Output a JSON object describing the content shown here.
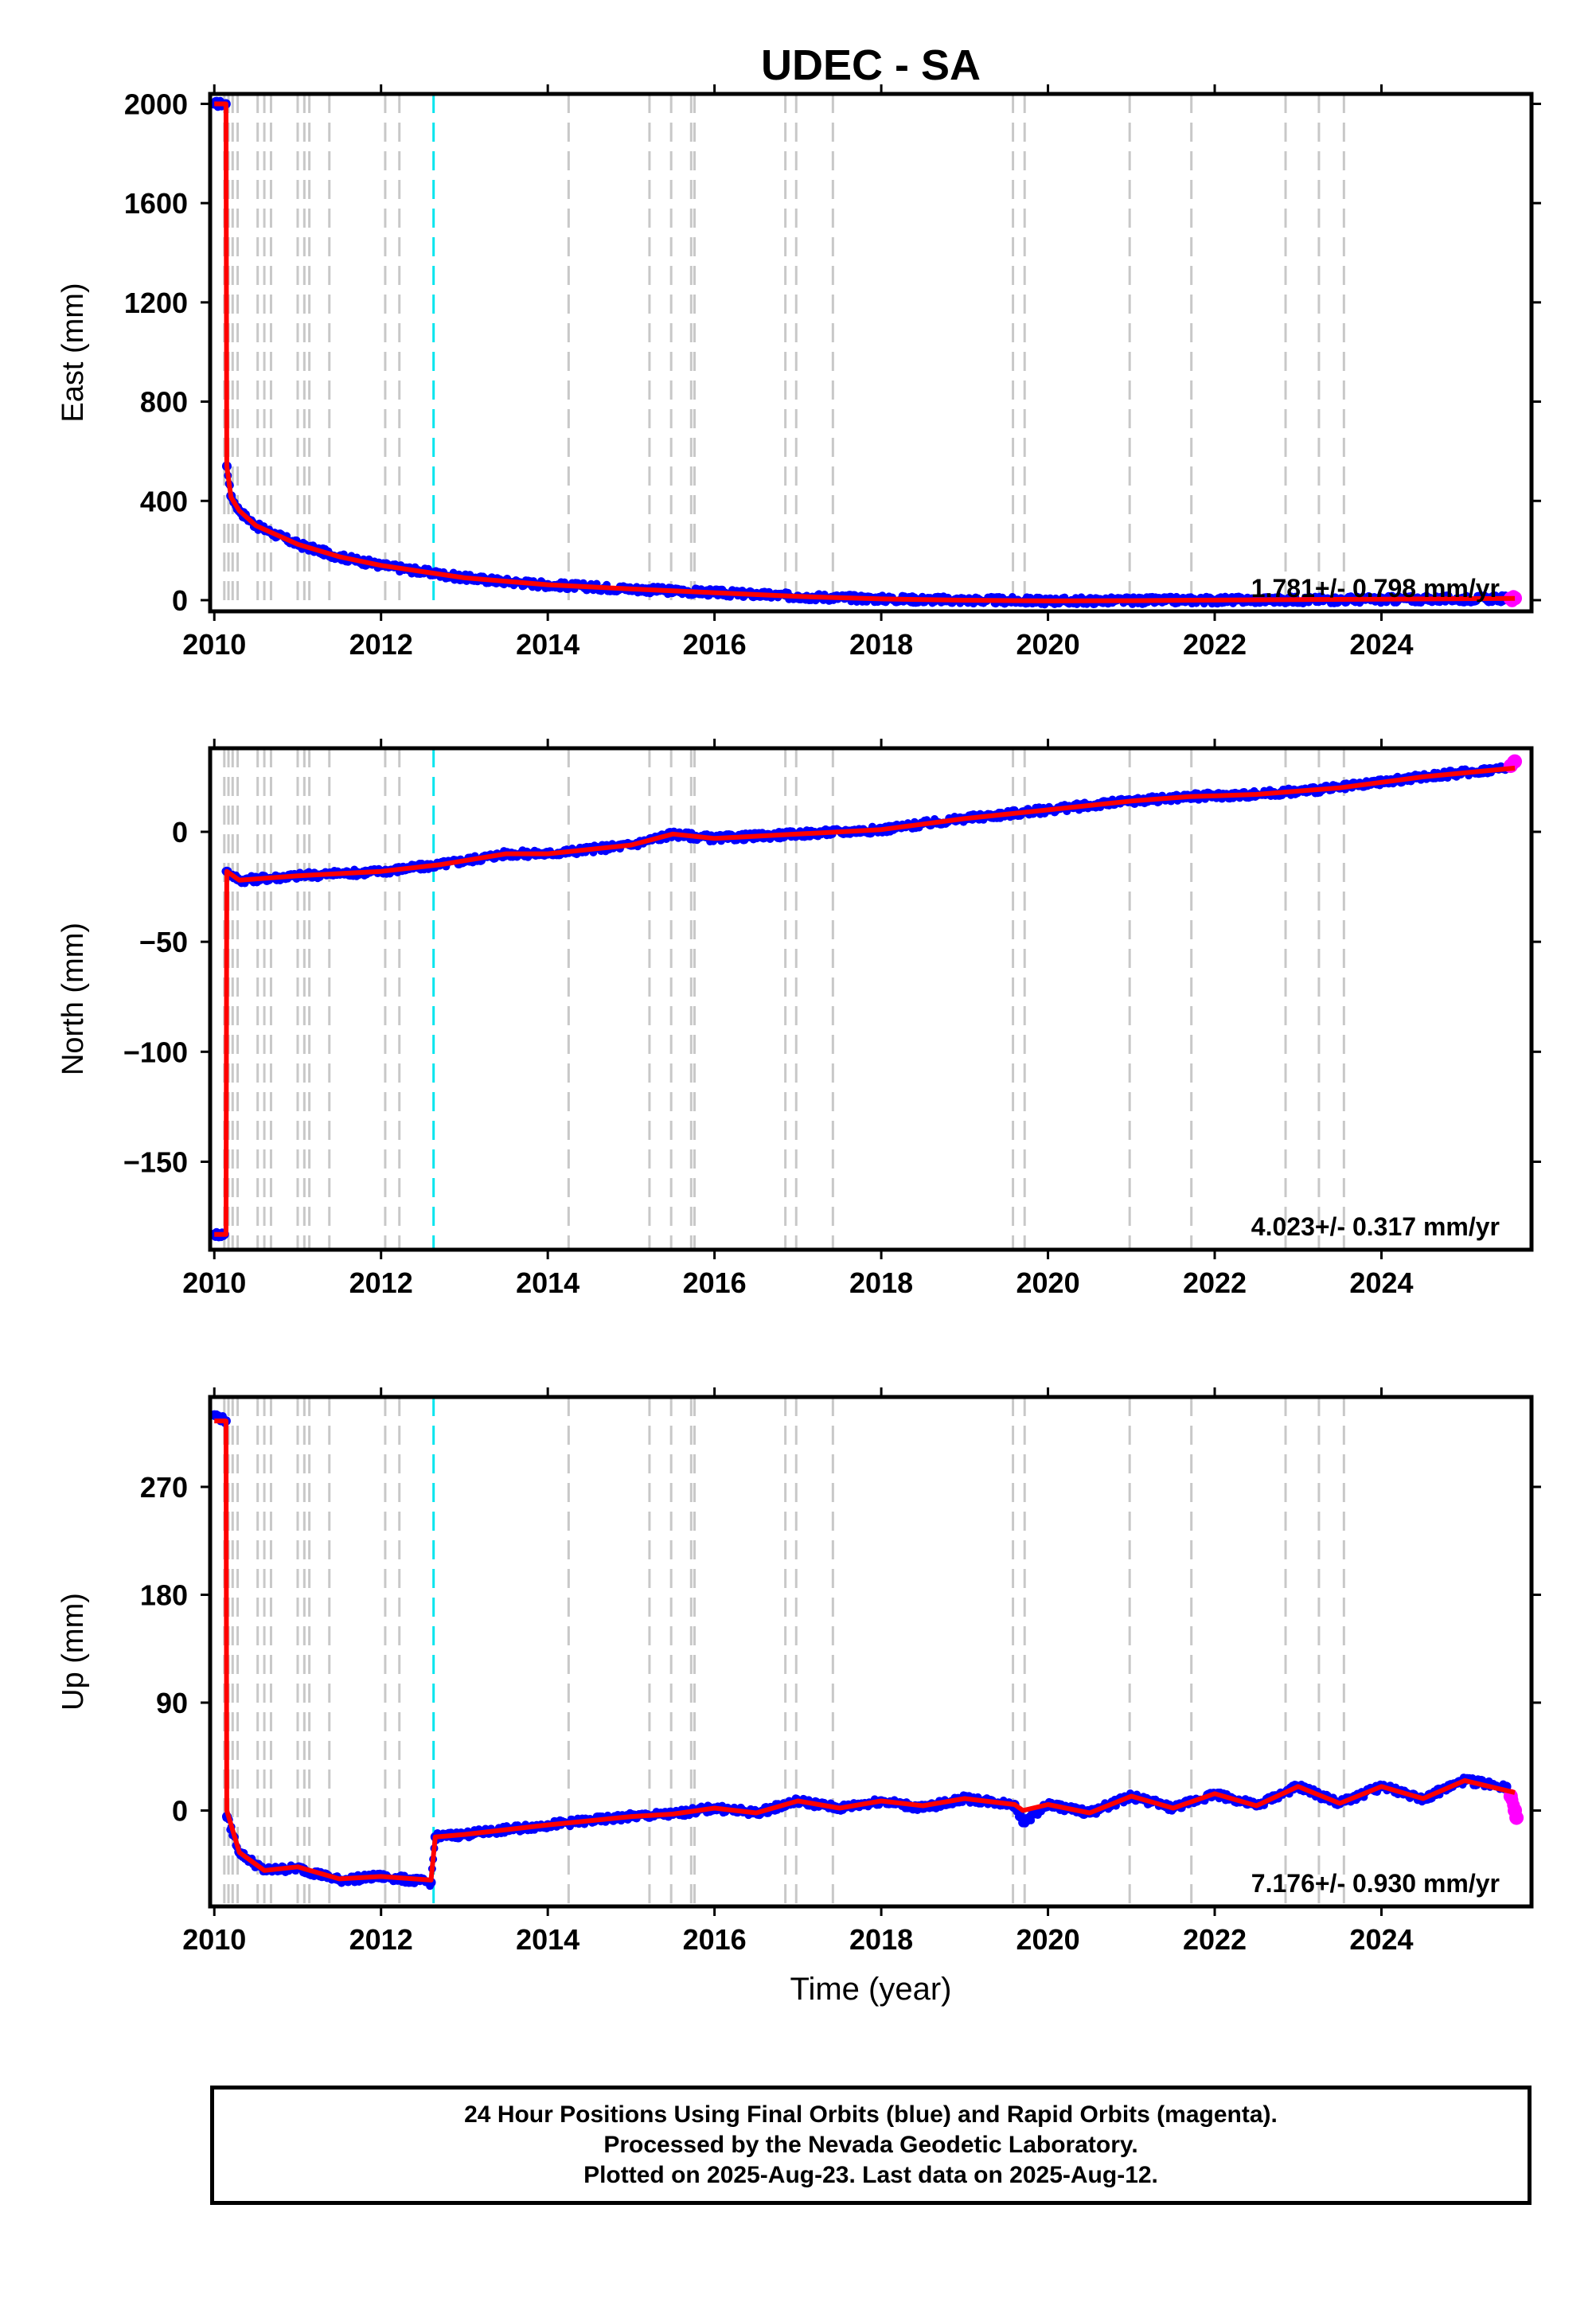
{
  "title": "UDEC - SA",
  "xlabel": "Time (year)",
  "footer": {
    "line1": "24 Hour Positions Using Final Orbits (blue) and Rapid Orbits (magenta).",
    "line2": "Processed by the Nevada Geodetic Laboratory.",
    "line3": "Plotted on 2025-Aug-23. Last data on 2025-Aug-12."
  },
  "colors": {
    "final_orbits": "#0000ff",
    "rapid_orbits": "#ff00ff",
    "model": "#ff0000",
    "equipment_change": "#c8c8c8",
    "earthquake_event": "#00e5ee"
  },
  "chart_data": [
    {
      "type": "scatter",
      "ylabel": "East (mm)",
      "xlim": [
        2009.95,
        2025.8
      ],
      "ylim": [
        -45,
        2040
      ],
      "xticks": [
        "2010",
        "2012",
        "2014",
        "2016",
        "2018",
        "2020",
        "2022",
        "2024"
      ],
      "yticks": [
        "0",
        "400",
        "800",
        "1200",
        "1600",
        "2000"
      ],
      "rate_label": "1.781+/- 0.798 mm/yr",
      "series": [
        {
          "name": "Final Orbits",
          "values": [
            [
              2010.0,
              2000
            ],
            [
              2010.1,
              2000
            ],
            [
              2010.14,
              2000
            ],
            [
              2010.15,
              540
            ],
            [
              2010.2,
              420
            ],
            [
              2010.3,
              360
            ],
            [
              2010.5,
              300
            ],
            [
              2011.0,
              225
            ],
            [
              2011.5,
              175
            ],
            [
              2012.0,
              140
            ],
            [
              2012.5,
              115
            ],
            [
              2013.0,
              90
            ],
            [
              2013.5,
              75
            ],
            [
              2014.0,
              62
            ],
            [
              2015.0,
              45
            ],
            [
              2016.0,
              30
            ],
            [
              2017.0,
              15
            ],
            [
              2018.0,
              5
            ],
            [
              2019.0,
              0
            ],
            [
              2020.0,
              -3
            ],
            [
              2021.0,
              -2
            ],
            [
              2021.7,
              0
            ],
            [
              2022.5,
              1
            ],
            [
              2023.5,
              2
            ],
            [
              2024.5,
              4
            ],
            [
              2025.5,
              6
            ]
          ]
        },
        {
          "name": "Rapid Orbits",
          "values": [
            [
              2025.55,
              6
            ],
            [
              2025.6,
              8
            ]
          ]
        }
      ],
      "model": [
        [
          2010.0,
          2000
        ],
        [
          2010.14,
          2000
        ],
        [
          2010.15,
          540
        ],
        [
          2010.2,
          415
        ],
        [
          2010.3,
          360
        ],
        [
          2010.5,
          300
        ],
        [
          2011.0,
          225
        ],
        [
          2011.5,
          175
        ],
        [
          2012.0,
          140
        ],
        [
          2012.5,
          115
        ],
        [
          2013.0,
          90
        ],
        [
          2014.0,
          62
        ],
        [
          2015.0,
          45
        ],
        [
          2016.0,
          30
        ],
        [
          2017.0,
          15
        ],
        [
          2018.0,
          5
        ],
        [
          2019.0,
          0
        ],
        [
          2020.0,
          -3
        ],
        [
          2021.0,
          -2
        ],
        [
          2021.7,
          0
        ],
        [
          2025.6,
          7
        ]
      ]
    },
    {
      "type": "scatter",
      "ylabel": "North (mm)",
      "xlim": [
        2009.95,
        2025.8
      ],
      "ylim": [
        -190,
        38
      ],
      "xticks": [
        "2010",
        "2012",
        "2014",
        "2016",
        "2018",
        "2020",
        "2022",
        "2024"
      ],
      "yticks": [
        "0",
        "−50",
        "−100",
        "−150"
      ],
      "rate_label": "4.023+/- 0.317 mm/yr",
      "series": [
        {
          "name": "Final Orbits",
          "values": [
            [
              2010.0,
              -183
            ],
            [
              2010.12,
              -183
            ],
            [
              2010.15,
              -18
            ],
            [
              2010.3,
              -22
            ],
            [
              2011.0,
              -20
            ],
            [
              2012.0,
              -18
            ],
            [
              2012.7,
              -15
            ],
            [
              2013.5,
              -10
            ],
            [
              2014.0,
              -10
            ],
            [
              2015.0,
              -6
            ],
            [
              2015.5,
              -1
            ],
            [
              2016.0,
              -3
            ],
            [
              2017.0,
              -1
            ],
            [
              2018.0,
              1
            ],
            [
              2019.0,
              6
            ],
            [
              2020.0,
              10
            ],
            [
              2021.0,
              14
            ],
            [
              2021.7,
              16
            ],
            [
              2022.5,
              17
            ],
            [
              2023.5,
              20
            ],
            [
              2024.5,
              25
            ],
            [
              2025.5,
              29
            ]
          ]
        },
        {
          "name": "Rapid Orbits",
          "values": [
            [
              2025.55,
              30
            ],
            [
              2025.6,
              32
            ]
          ]
        }
      ],
      "model": [
        [
          2010.0,
          -183
        ],
        [
          2010.14,
          -183
        ],
        [
          2010.15,
          -18
        ],
        [
          2010.3,
          -22
        ],
        [
          2011.0,
          -20
        ],
        [
          2012.0,
          -18
        ],
        [
          2012.7,
          -15
        ],
        [
          2013.5,
          -10
        ],
        [
          2014.0,
          -10
        ],
        [
          2015.0,
          -6
        ],
        [
          2015.5,
          -1
        ],
        [
          2016.0,
          -3
        ],
        [
          2017.0,
          -1
        ],
        [
          2018.0,
          1
        ],
        [
          2019.0,
          6
        ],
        [
          2020.0,
          10
        ],
        [
          2021.0,
          14
        ],
        [
          2021.7,
          16
        ],
        [
          2022.5,
          17
        ],
        [
          2023.5,
          20
        ],
        [
          2024.5,
          25
        ],
        [
          2025.6,
          29
        ]
      ]
    },
    {
      "type": "scatter",
      "ylabel": "Up (mm)",
      "xlim": [
        2009.95,
        2025.8
      ],
      "ylim": [
        -80,
        345
      ],
      "xticks": [
        "2010",
        "2012",
        "2014",
        "2016",
        "2018",
        "2020",
        "2022",
        "2024"
      ],
      "yticks": [
        "0",
        "90",
        "180",
        "270"
      ],
      "rate_label": "7.176+/- 0.930 mm/yr",
      "series": [
        {
          "name": "Final Orbits",
          "values": [
            [
              2010.0,
              330
            ],
            [
              2010.14,
              325
            ],
            [
              2010.15,
              -5
            ],
            [
              2010.3,
              -35
            ],
            [
              2010.6,
              -50
            ],
            [
              2011.0,
              -48
            ],
            [
              2011.5,
              -58
            ],
            [
              2012.0,
              -55
            ],
            [
              2012.6,
              -60
            ],
            [
              2012.65,
              -22
            ],
            [
              2013.0,
              -20
            ],
            [
              2014.0,
              -12
            ],
            [
              2015.0,
              -5
            ],
            [
              2015.5,
              -3
            ],
            [
              2016.0,
              2
            ],
            [
              2016.5,
              -2
            ],
            [
              2017.0,
              8
            ],
            [
              2017.5,
              2
            ],
            [
              2018.0,
              8
            ],
            [
              2018.5,
              2
            ],
            [
              2019.0,
              10
            ],
            [
              2019.6,
              5
            ],
            [
              2019.7,
              -10
            ],
            [
              2020.0,
              5
            ],
            [
              2020.5,
              -2
            ],
            [
              2021.0,
              12
            ],
            [
              2021.5,
              2
            ],
            [
              2022.0,
              14
            ],
            [
              2022.5,
              4
            ],
            [
              2023.0,
              20
            ],
            [
              2023.5,
              6
            ],
            [
              2024.0,
              20
            ],
            [
              2024.5,
              10
            ],
            [
              2025.0,
              25
            ],
            [
              2025.5,
              20
            ]
          ]
        },
        {
          "name": "Rapid Orbits",
          "values": [
            [
              2025.55,
              12
            ],
            [
              2025.6,
              0
            ],
            [
              2025.62,
              -6
            ]
          ]
        }
      ],
      "model": [
        [
          2010.0,
          325
        ],
        [
          2010.14,
          325
        ],
        [
          2010.15,
          0
        ],
        [
          2010.3,
          -35
        ],
        [
          2010.6,
          -50
        ],
        [
          2011.0,
          -47
        ],
        [
          2011.5,
          -57
        ],
        [
          2012.0,
          -55
        ],
        [
          2012.6,
          -58
        ],
        [
          2012.65,
          -22
        ],
        [
          2013.0,
          -20
        ],
        [
          2014.0,
          -12
        ],
        [
          2015.0,
          -5
        ],
        [
          2015.5,
          -3
        ],
        [
          2016.0,
          2
        ],
        [
          2016.5,
          -2
        ],
        [
          2017.0,
          8
        ],
        [
          2017.5,
          2
        ],
        [
          2018.0,
          8
        ],
        [
          2018.5,
          4
        ],
        [
          2019.0,
          10
        ],
        [
          2019.6,
          5
        ],
        [
          2019.7,
          0
        ],
        [
          2020.0,
          5
        ],
        [
          2020.5,
          -2
        ],
        [
          2021.0,
          12
        ],
        [
          2021.5,
          2
        ],
        [
          2022.0,
          14
        ],
        [
          2022.5,
          4
        ],
        [
          2023.0,
          20
        ],
        [
          2023.5,
          6
        ],
        [
          2024.0,
          20
        ],
        [
          2024.5,
          10
        ],
        [
          2025.0,
          25
        ],
        [
          2025.6,
          15
        ]
      ]
    }
  ],
  "event_lines": {
    "equipment_changes": [
      2010.12,
      2010.17,
      2010.22,
      2010.28,
      2010.52,
      2010.6,
      2010.68,
      2011.0,
      2011.08,
      2011.14,
      2011.38,
      2012.05,
      2012.22,
      2014.25,
      2015.22,
      2015.48,
      2015.72,
      2015.76,
      2016.85,
      2016.98,
      2017.42,
      2019.58,
      2019.72,
      2020.98,
      2021.72,
      2022.85,
      2023.25,
      2023.55
    ],
    "earthquakes": [
      2012.63
    ]
  }
}
